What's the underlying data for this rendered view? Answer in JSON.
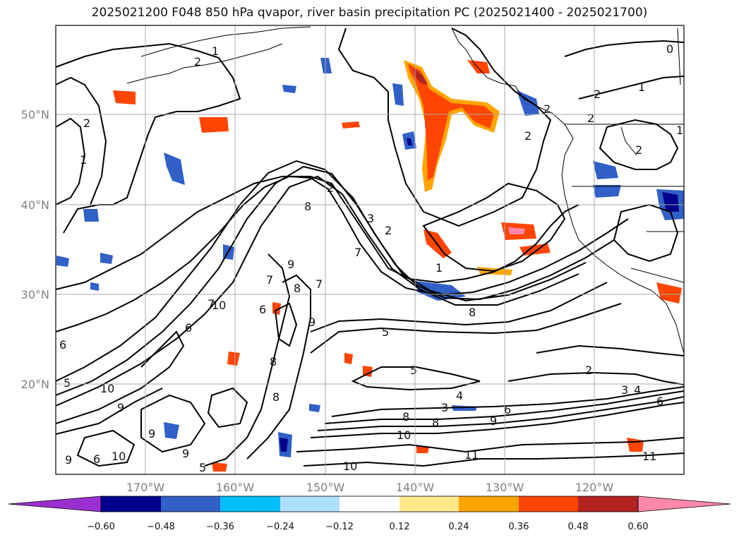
{
  "title": "2025021200 F048 850 hPa qvapor, river basin precipitation PC (2025021400 - 2025021700)",
  "lat_labels": [
    "50°N",
    "40°N",
    "30°N",
    "20°N"
  ],
  "lon_labels": [
    "170°W",
    "160°W",
    "150°W",
    "140°W",
    "130°W",
    "120°W"
  ],
  "contour_labels": [
    "2",
    "1",
    "1",
    "2",
    "2",
    "0",
    "1",
    "2",
    "2",
    "2",
    "2",
    "1",
    "2",
    "8",
    "7",
    "3",
    "2",
    "1",
    "8",
    "9",
    "7",
    "7",
    "6",
    "9",
    "8",
    "6",
    "5",
    "5",
    "2",
    "4",
    "3",
    "3",
    "4",
    "6",
    "6",
    "9",
    "10",
    "11",
    "11",
    "10",
    "6",
    "5",
    "10",
    "9",
    "9",
    "10",
    "6",
    "8",
    "8",
    "9",
    "5",
    "10",
    "8",
    "9",
    "7",
    "8"
  ],
  "colorbar": {
    "ticks": [
      "−0.60",
      "−0.48",
      "−0.36",
      "−0.24",
      "−0.12",
      "0.12",
      "0.24",
      "0.36",
      "0.48",
      "0.60"
    ],
    "colors": [
      "#9b30d0",
      "#00008b",
      "#3060c8",
      "#00bfff",
      "#b0e0ff",
      "#ffffff",
      "#ffe88a",
      "#ffa500",
      "#ff4500",
      "#b22222",
      "#ff88aa"
    ]
  }
}
